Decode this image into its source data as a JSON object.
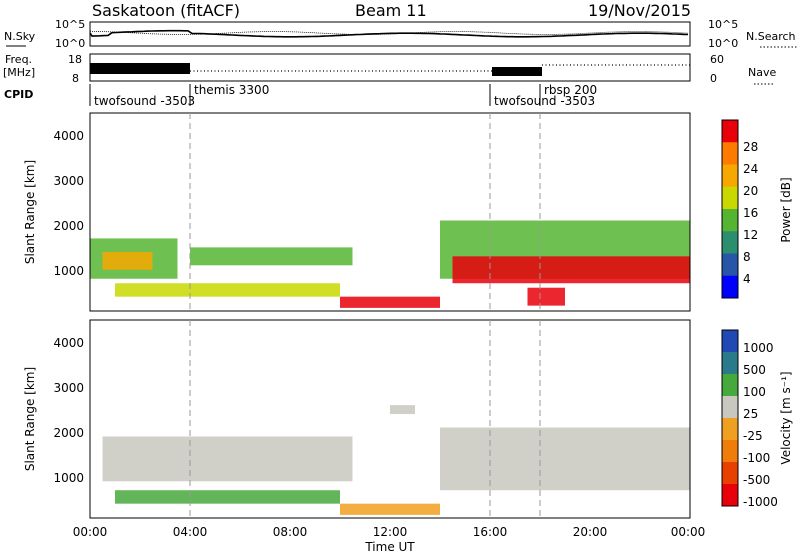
{
  "header": {
    "radar": "Saskatoon (fitACF)",
    "beam": "Beam 11",
    "date": "19/Nov/2015"
  },
  "top_panel": {
    "left_label": "N.Sky",
    "right_label": "N.Search",
    "left_ticks": [
      "10^5",
      "10^0"
    ],
    "right_ticks": [
      "10^5",
      "10^0"
    ]
  },
  "freq_panel": {
    "left_label_1": "Freq.",
    "left_label_2": "[MHz]",
    "right_label": "Nave",
    "left_ticks": [
      "18",
      "8"
    ],
    "right_ticks": [
      "60",
      "0"
    ],
    "cpid_label": "CPID"
  },
  "cpid_segments": [
    {
      "label": "twofsound -3503",
      "start_hour": 0
    },
    {
      "label": "themis 3300",
      "start_hour": 4
    },
    {
      "label": "twofsound -3503",
      "start_hour": 16
    },
    {
      "label": "rbsp 200",
      "start_hour": 18
    }
  ],
  "x_axis": {
    "label": "Time UT",
    "ticks": [
      "00:00",
      "04:00",
      "08:00",
      "12:00",
      "16:00",
      "20:00",
      "00:00"
    ],
    "range_hours": [
      0,
      24
    ]
  },
  "power_panel": {
    "ylabel": "Slant Range [km]",
    "yticks": [
      "4000",
      "3000",
      "2000",
      "1000"
    ],
    "colorbar_label": "Power [dB]",
    "colorbar_ticks": [
      "28",
      "24",
      "20",
      "16",
      "12",
      "8",
      "4"
    ],
    "colors": [
      "#e8000b",
      "#ff7b00",
      "#f6a800",
      "#c8d800",
      "#55b532",
      "#2b8f6f",
      "#2756a8",
      "#0000ff"
    ]
  },
  "velocity_panel": {
    "ylabel": "Slant Range [km]",
    "yticks": [
      "4000",
      "3000",
      "2000",
      "1000"
    ],
    "colorbar_label": "Velocity [m s⁻¹]",
    "colorbar_ticks": [
      "1000",
      "500",
      "100",
      "25",
      "-25",
      "-100",
      "-500",
      "-1000"
    ],
    "colors": [
      "#2149b3",
      "#2a7a8c",
      "#46a93c",
      "#c8c8c0",
      "#f0a020",
      "#f07d0a",
      "#e84000",
      "#e8000b"
    ]
  },
  "chart_data": {
    "type": "heatmap",
    "x_range_hours": [
      0,
      24
    ],
    "y_range_km": [
      180,
      4600
    ],
    "power_regions": [
      {
        "t0": 0.0,
        "t1": 3.5,
        "r0": 900,
        "r1": 1800,
        "level": "green",
        "color": "#55b532"
      },
      {
        "t0": 0.5,
        "t1": 2.5,
        "r0": 1100,
        "r1": 1500,
        "level": "orange",
        "color": "#f6a800"
      },
      {
        "t0": 4.0,
        "t1": 10.5,
        "r0": 1200,
        "r1": 1600,
        "level": "green",
        "color": "#55b532"
      },
      {
        "t0": 1.0,
        "t1": 10.0,
        "r0": 500,
        "r1": 800,
        "level": "yellow",
        "color": "#c8d800"
      },
      {
        "t0": 10.0,
        "t1": 14.0,
        "r0": 250,
        "r1": 500,
        "level": "red",
        "color": "#e8000b"
      },
      {
        "t0": 14.0,
        "t1": 24.0,
        "r0": 900,
        "r1": 2200,
        "level": "green",
        "color": "#55b532"
      },
      {
        "t0": 14.5,
        "t1": 24.0,
        "r0": 800,
        "r1": 1400,
        "level": "red",
        "color": "#e8000b"
      },
      {
        "t0": 17.5,
        "t1": 19.0,
        "r0": 300,
        "r1": 700,
        "level": "red",
        "color": "#e8000b"
      }
    ],
    "velocity_regions": [
      {
        "t0": 0.5,
        "t1": 10.5,
        "r0": 1000,
        "r1": 2000,
        "level": "near-zero",
        "color": "#c8c8c0"
      },
      {
        "t0": 1.0,
        "t1": 10.0,
        "r0": 500,
        "r1": 800,
        "level": "positive",
        "color": "#46a93c"
      },
      {
        "t0": 10.0,
        "t1": 14.0,
        "r0": 250,
        "r1": 500,
        "level": "negative",
        "color": "#f0a020"
      },
      {
        "t0": 14.0,
        "t1": 24.0,
        "r0": 800,
        "r1": 2200,
        "level": "near-zero",
        "color": "#c8c8c0"
      },
      {
        "t0": 12.0,
        "t1": 13.0,
        "r0": 2500,
        "r1": 2700,
        "level": "near-zero",
        "color": "#c8c8c0"
      }
    ]
  }
}
